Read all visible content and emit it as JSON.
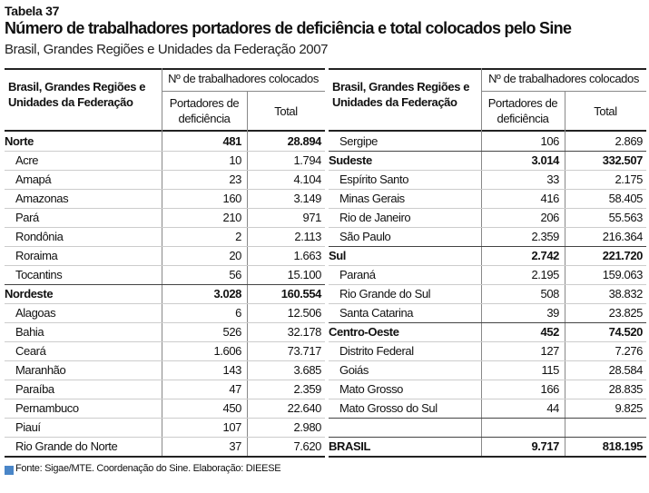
{
  "header": {
    "label": "Tabela 37",
    "title": "Número de trabalhadores portadores de deficiência e total colocados pelo Sine",
    "subtitle": "Brasil, Grandes Regiões e Unidades da Federação 2007"
  },
  "table": {
    "columns": {
      "region": "Brasil, Grandes Regiões e Unidades da Federação",
      "group": "Nº de trabalhadores colocados",
      "pcd": "Portadores de deficiência",
      "total": "Total"
    },
    "left_rows": [
      {
        "name": "Norte",
        "pcd": "481",
        "total": "28.894",
        "bold": true
      },
      {
        "name": "Acre",
        "pcd": "10",
        "total": "1.794"
      },
      {
        "name": "Amapá",
        "pcd": "23",
        "total": "4.104"
      },
      {
        "name": "Amazonas",
        "pcd": "160",
        "total": "3.149"
      },
      {
        "name": "Pará",
        "pcd": "210",
        "total": "971"
      },
      {
        "name": "Rondônia",
        "pcd": "2",
        "total": "2.113"
      },
      {
        "name": "Roraima",
        "pcd": "20",
        "total": "1.663"
      },
      {
        "name": "Tocantins",
        "pcd": "56",
        "total": "15.100"
      },
      {
        "name": "Nordeste",
        "pcd": "3.028",
        "total": "160.554",
        "bold": true
      },
      {
        "name": "Alagoas",
        "pcd": "6",
        "total": "12.506"
      },
      {
        "name": "Bahia",
        "pcd": "526",
        "total": "32.178"
      },
      {
        "name": "Ceará",
        "pcd": "1.606",
        "total": "73.717"
      },
      {
        "name": "Maranhão",
        "pcd": "143",
        "total": "3.685"
      },
      {
        "name": "Paraíba",
        "pcd": "47",
        "total": "2.359"
      },
      {
        "name": "Pernambuco",
        "pcd": "450",
        "total": "22.640"
      },
      {
        "name": "Piauí",
        "pcd": "107",
        "total": "2.980"
      },
      {
        "name": "Rio Grande do Norte",
        "pcd": "37",
        "total": "7.620"
      }
    ],
    "right_rows": [
      {
        "name": "Sergipe",
        "pcd": "106",
        "total": "2.869"
      },
      {
        "name": "Sudeste",
        "pcd": "3.014",
        "total": "332.507",
        "bold": true
      },
      {
        "name": "Espírito Santo",
        "pcd": "33",
        "total": "2.175"
      },
      {
        "name": "Minas Gerais",
        "pcd": "416",
        "total": "58.405"
      },
      {
        "name": "Rio de Janeiro",
        "pcd": "206",
        "total": "55.563"
      },
      {
        "name": "São Paulo",
        "pcd": "2.359",
        "total": "216.364"
      },
      {
        "name": "Sul",
        "pcd": "2.742",
        "total": "221.720",
        "bold": true
      },
      {
        "name": "Paraná",
        "pcd": "2.195",
        "total": "159.063"
      },
      {
        "name": "Rio Grande do Sul",
        "pcd": "508",
        "total": "38.832"
      },
      {
        "name": "Santa Catarina",
        "pcd": "39",
        "total": "23.825"
      },
      {
        "name": "Centro-Oeste",
        "pcd": "452",
        "total": "74.520",
        "bold": true
      },
      {
        "name": "Distrito Federal",
        "pcd": "127",
        "total": "7.276"
      },
      {
        "name": "Goiás",
        "pcd": "115",
        "total": "28.584"
      },
      {
        "name": "Mato Grosso",
        "pcd": "166",
        "total": "28.835"
      },
      {
        "name": "Mato Grosso do Sul",
        "pcd": "44",
        "total": "9.825"
      }
    ],
    "total_row": {
      "name": "BRASIL",
      "pcd": "9.717",
      "total": "818.195",
      "bold": true
    }
  },
  "footer": "Fonte: Sigae/MTE. Coordenação do Sine. Elaboração: DIEESE"
}
